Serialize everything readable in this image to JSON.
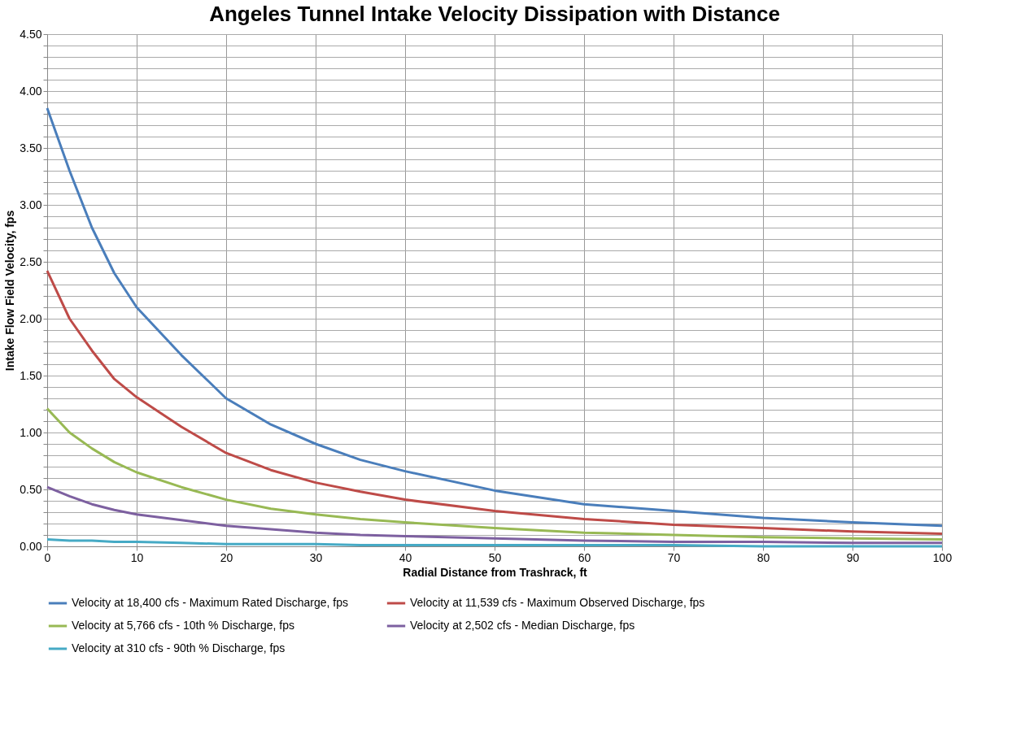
{
  "chart_data": {
    "type": "line",
    "title": "Angeles Tunnel Intake Velocity Dissipation with Distance",
    "xlabel": "Radial Distance from Trashrack, ft",
    "ylabel": "Intake Flow Field Velocity, fps",
    "x": [
      0,
      2.5,
      5,
      7.5,
      10,
      15,
      20,
      25,
      30,
      35,
      40,
      50,
      60,
      70,
      80,
      90,
      100
    ],
    "series": [
      {
        "name": "Velocity at 18,400 cfs - Maximum Rated Discharge, fps",
        "color": "#4a7ebb",
        "values": [
          3.85,
          3.3,
          2.8,
          2.4,
          2.1,
          1.68,
          1.3,
          1.07,
          0.9,
          0.76,
          0.66,
          0.49,
          0.37,
          0.31,
          0.25,
          0.21,
          0.18
        ]
      },
      {
        "name": "Velocity at 11,539 cfs - Maximum Observed Discharge, fps",
        "color": "#be4b48",
        "values": [
          2.42,
          2.0,
          1.72,
          1.47,
          1.31,
          1.05,
          0.82,
          0.67,
          0.56,
          0.48,
          0.41,
          0.31,
          0.24,
          0.19,
          0.16,
          0.13,
          0.11
        ]
      },
      {
        "name": "Velocity at 5,766 cfs - 10th % Discharge, fps",
        "color": "#98b954",
        "values": [
          1.21,
          1.0,
          0.86,
          0.74,
          0.65,
          0.52,
          0.41,
          0.33,
          0.28,
          0.24,
          0.21,
          0.16,
          0.12,
          0.1,
          0.08,
          0.07,
          0.06
        ]
      },
      {
        "name": "Velocity at 2,502 cfs - Median Discharge, fps",
        "color": "#7d60a0",
        "values": [
          0.52,
          0.44,
          0.37,
          0.32,
          0.28,
          0.23,
          0.18,
          0.15,
          0.12,
          0.1,
          0.09,
          0.07,
          0.05,
          0.04,
          0.04,
          0.03,
          0.03
        ]
      },
      {
        "name": "Velocity at 310 cfs - 90th %  Discharge, fps",
        "color": "#46aac5",
        "values": [
          0.06,
          0.05,
          0.05,
          0.04,
          0.04,
          0.03,
          0.02,
          0.02,
          0.02,
          0.01,
          0.01,
          0.01,
          0.01,
          0.01,
          0.0,
          0.0,
          0.0
        ]
      }
    ],
    "xlim": [
      0,
      100
    ],
    "xticks": [
      0,
      10,
      20,
      30,
      40,
      50,
      60,
      70,
      80,
      90,
      100
    ],
    "ylim": [
      0,
      4.5
    ],
    "yticks": [
      {
        "value": 0,
        "label": "0.00"
      },
      {
        "value": 0.1,
        "label": null
      },
      {
        "value": 0.2,
        "label": null
      },
      {
        "value": 0.3,
        "label": null
      },
      {
        "value": 0.4,
        "label": null
      },
      {
        "value": 0.5,
        "label": "0.50"
      },
      {
        "value": 0.6,
        "label": null
      },
      {
        "value": 0.7,
        "label": null
      },
      {
        "value": 0.8,
        "label": null
      },
      {
        "value": 0.9,
        "label": null
      },
      {
        "value": 1.0,
        "label": "1.00"
      },
      {
        "value": 1.1,
        "label": null
      },
      {
        "value": 1.2,
        "label": null
      },
      {
        "value": 1.3,
        "label": null
      },
      {
        "value": 1.4,
        "label": null
      },
      {
        "value": 1.5,
        "label": "1.50"
      },
      {
        "value": 1.6,
        "label": null
      },
      {
        "value": 1.7,
        "label": null
      },
      {
        "value": 1.8,
        "label": null
      },
      {
        "value": 1.9,
        "label": null
      },
      {
        "value": 2.0,
        "label": "2.00"
      },
      {
        "value": 2.1,
        "label": null
      },
      {
        "value": 2.2,
        "label": null
      },
      {
        "value": 2.3,
        "label": null
      },
      {
        "value": 2.4,
        "label": null
      },
      {
        "value": 2.5,
        "label": "2.50"
      },
      {
        "value": 2.6,
        "label": null
      },
      {
        "value": 2.7,
        "label": null
      },
      {
        "value": 2.8,
        "label": null
      },
      {
        "value": 2.9,
        "label": null
      },
      {
        "value": 3.0,
        "label": "3.00"
      },
      {
        "value": 3.1,
        "label": null
      },
      {
        "value": 3.2,
        "label": null
      },
      {
        "value": 3.3,
        "label": null
      },
      {
        "value": 3.4,
        "label": null
      },
      {
        "value": 3.5,
        "label": "3.50"
      },
      {
        "value": 3.6,
        "label": null
      },
      {
        "value": 3.7,
        "label": null
      },
      {
        "value": 3.8,
        "label": null
      },
      {
        "value": 3.9,
        "label": null
      },
      {
        "value": 4.0,
        "label": "4.00"
      },
      {
        "value": 4.1,
        "label": null
      },
      {
        "value": 4.2,
        "label": null
      },
      {
        "value": 4.3,
        "label": null
      },
      {
        "value": 4.4,
        "label": null
      },
      {
        "value": 4.5,
        "label": "4.50"
      }
    ],
    "grid": true,
    "legend": "bottom",
    "marker": "none",
    "line_style": "solid"
  }
}
